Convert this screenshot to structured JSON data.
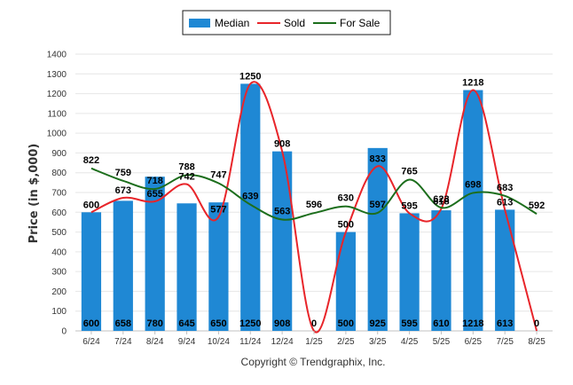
{
  "chart_data": {
    "type": "bar",
    "categories": [
      "6/24",
      "7/24",
      "8/24",
      "9/24",
      "10/24",
      "11/24",
      "12/24",
      "1/25",
      "2/25",
      "3/25",
      "4/25",
      "5/25",
      "6/25",
      "7/25",
      "8/25"
    ],
    "series": [
      {
        "name": "Median",
        "kind": "bar",
        "color": "#1f88d4",
        "values": [
          600,
          658,
          780,
          645,
          650,
          1250,
          908,
          null,
          500,
          925,
          595,
          610,
          1218,
          613,
          null
        ],
        "value_labels": [
          "600",
          "658",
          "780",
          "645",
          "650",
          "1250",
          "908",
          "0",
          "500",
          "925",
          "595",
          "610",
          "1218",
          "613",
          "0"
        ]
      },
      {
        "name": "Sold",
        "kind": "line",
        "color": "#e8252a",
        "values": [
          600,
          673,
          655,
          742,
          577,
          1250,
          908,
          0,
          500,
          833,
          595,
          618,
          1218,
          613,
          0
        ],
        "value_labels": [
          "600",
          "673",
          "655",
          "742",
          "577",
          "1250",
          "908",
          "0",
          "500",
          "833",
          "595",
          "618",
          "1218",
          "613",
          "0"
        ]
      },
      {
        "name": "For Sale",
        "kind": "line",
        "color": "#1c6e1c",
        "values": [
          822,
          759,
          718,
          788,
          747,
          639,
          563,
          596,
          630,
          597,
          765,
          623,
          698,
          683,
          592
        ],
        "value_labels": [
          "822",
          "759",
          "718",
          "788",
          "747",
          "639",
          "563",
          "596",
          "630",
          "597",
          "765",
          "623",
          "698",
          "683",
          "592"
        ]
      }
    ],
    "ylabel": "Price (in $,000)",
    "ylim": [
      0,
      1400
    ],
    "yticks": [
      "0",
      "100",
      "200",
      "300",
      "400",
      "500",
      "600",
      "700",
      "800",
      "900",
      "1000",
      "1100",
      "1200",
      "1300",
      "1400"
    ],
    "grid": true,
    "legend_placement": "top-center"
  },
  "legend": {
    "median": "Median",
    "sold": "Sold",
    "for_sale": "For Sale"
  },
  "copyright": "Copyright © Trendgraphix, Inc."
}
